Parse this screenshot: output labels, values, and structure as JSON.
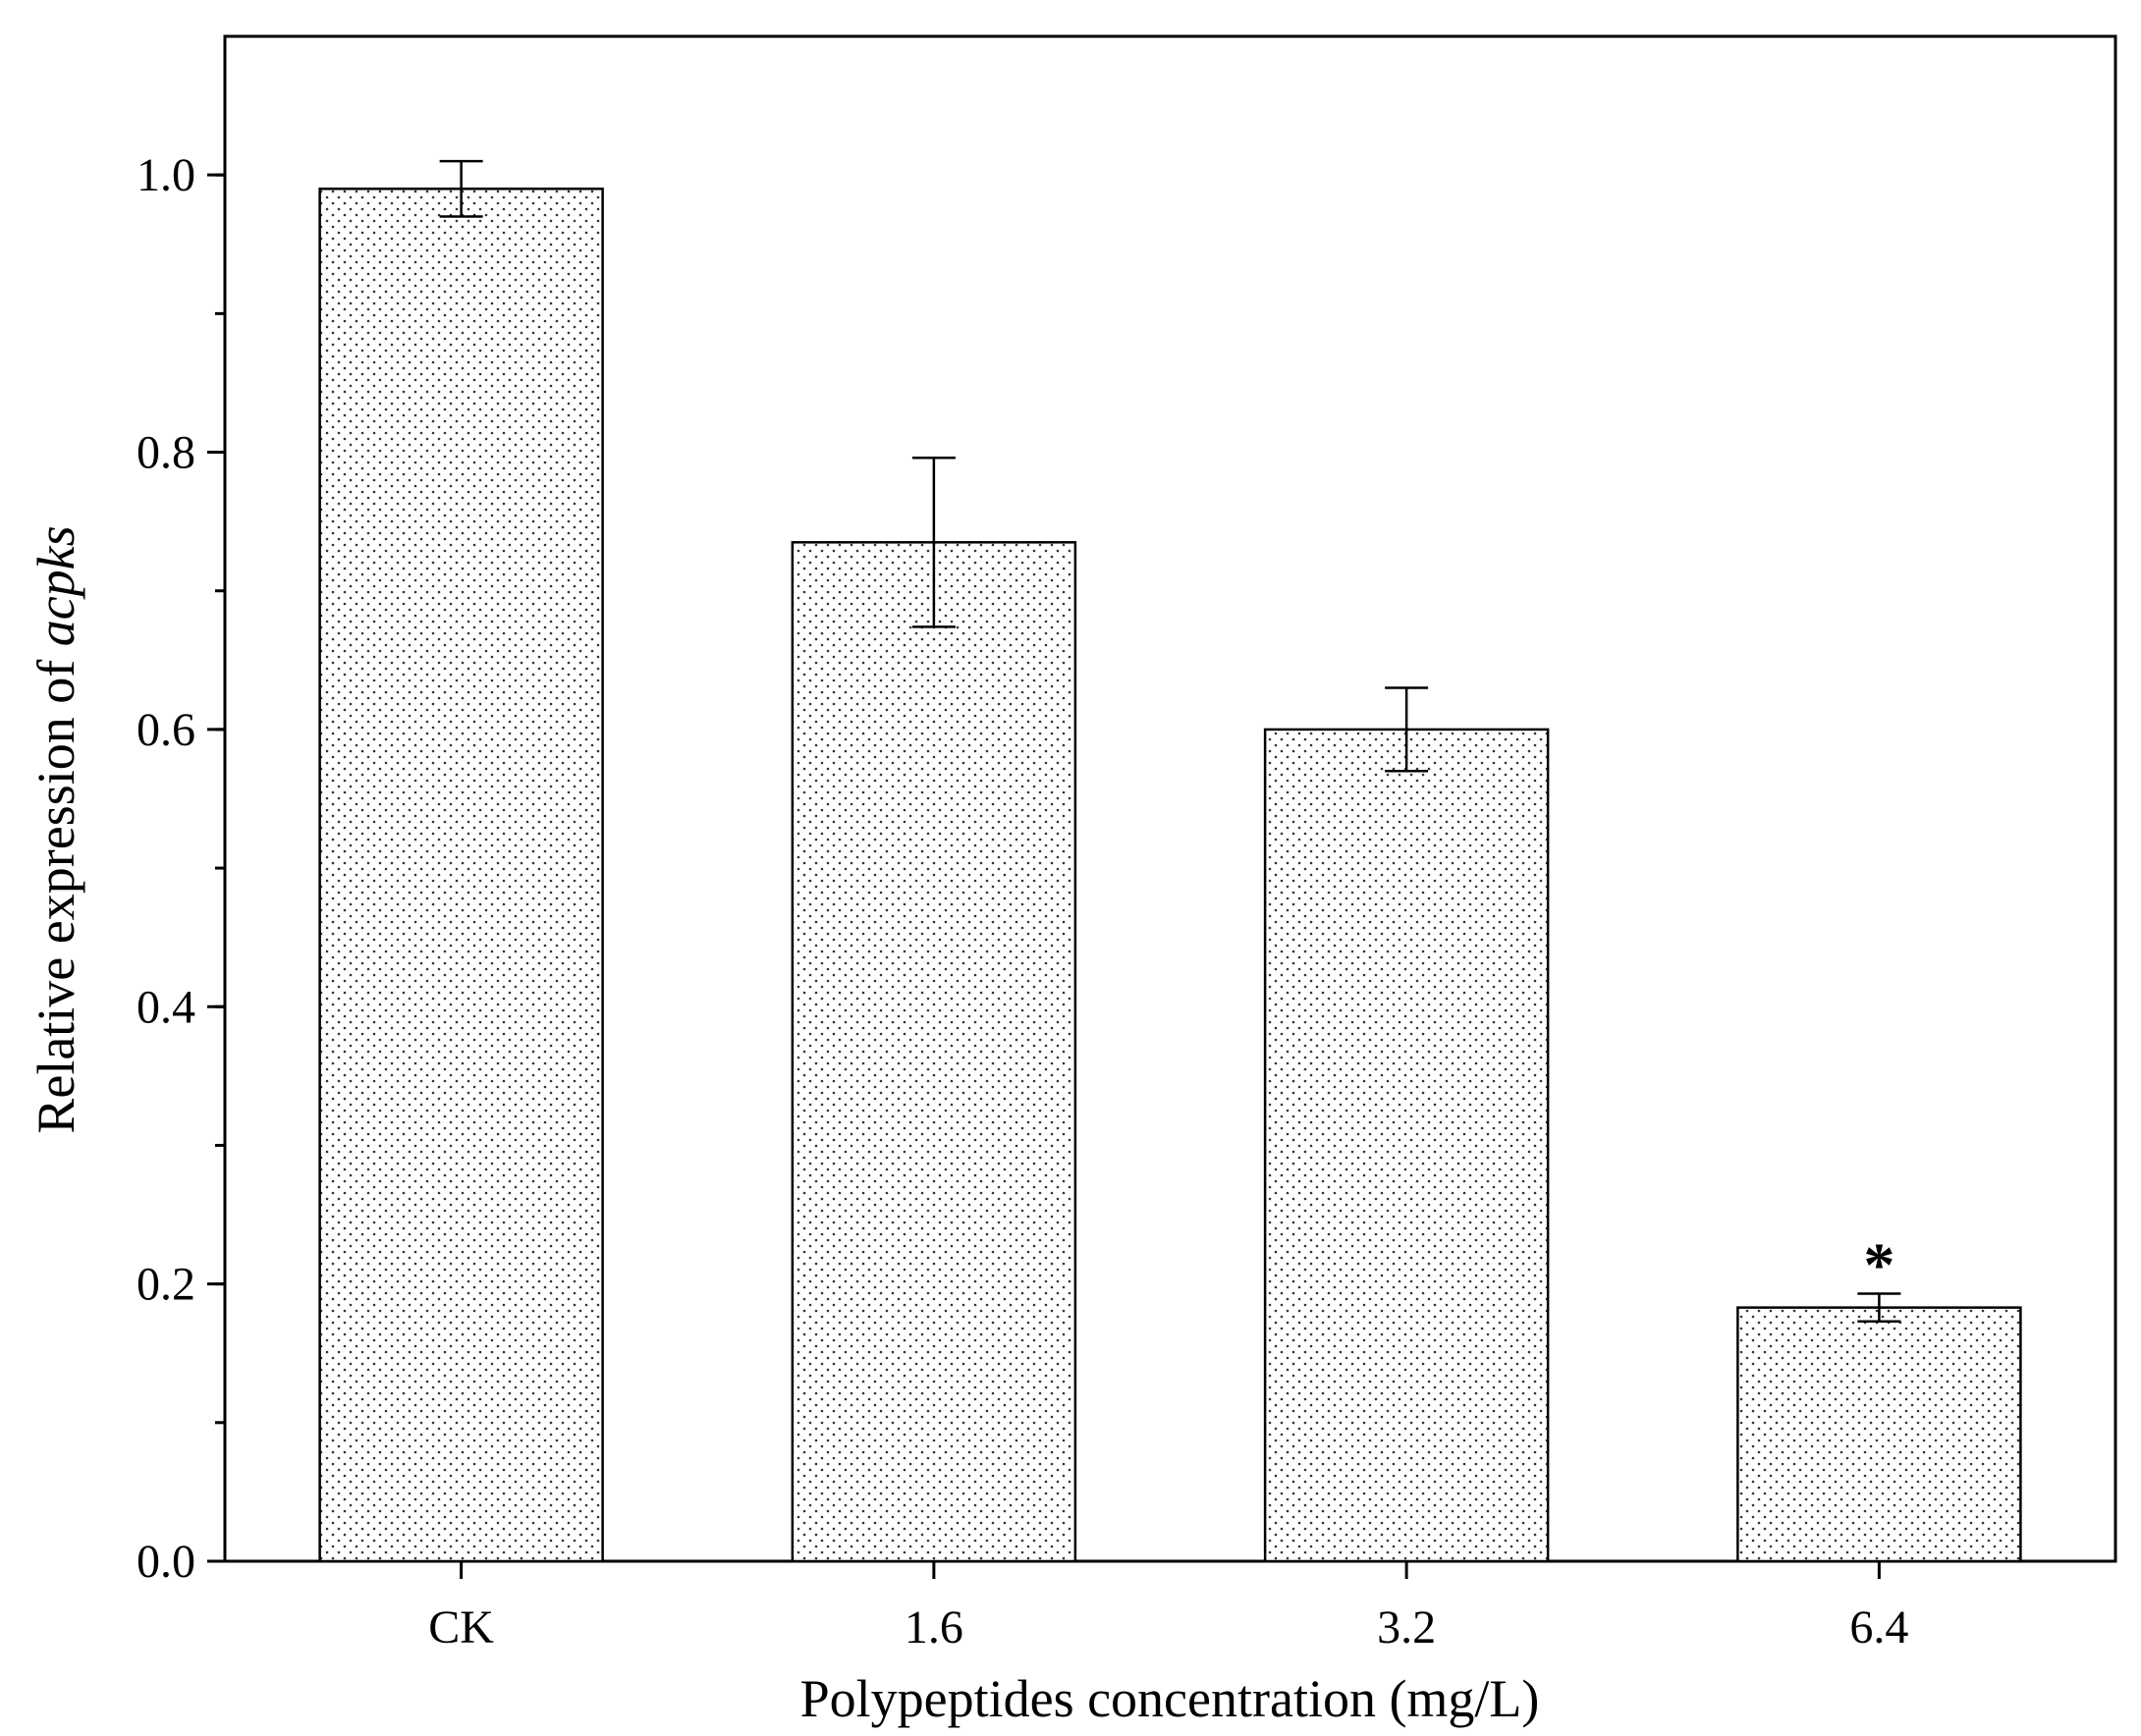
{
  "chart_data": {
    "type": "bar",
    "categories": [
      "CK",
      "1.6",
      "3.2",
      "6.4"
    ],
    "values": [
      0.99,
      0.735,
      0.6,
      0.183
    ],
    "errors": [
      0.02,
      0.061,
      0.03,
      0.01
    ],
    "significance": [
      "",
      "",
      "",
      "*"
    ],
    "xlabel": "Polypeptides concentration (mg/L)",
    "ylabel_prefix": "Relative expression of ",
    "ylabel_gene": "acpks",
    "ylim": [
      0,
      1.1
    ],
    "yticks": [
      "0.0",
      "0.2",
      "0.4",
      "0.6",
      "0.8",
      "1.0"
    ],
    "ytick_values": [
      0,
      0.2,
      0.4,
      0.6,
      0.8,
      1.0
    ],
    "minor_ytick_step": 0.1,
    "bar_fill": "dotted pattern",
    "grid": false,
    "legend": "none"
  }
}
